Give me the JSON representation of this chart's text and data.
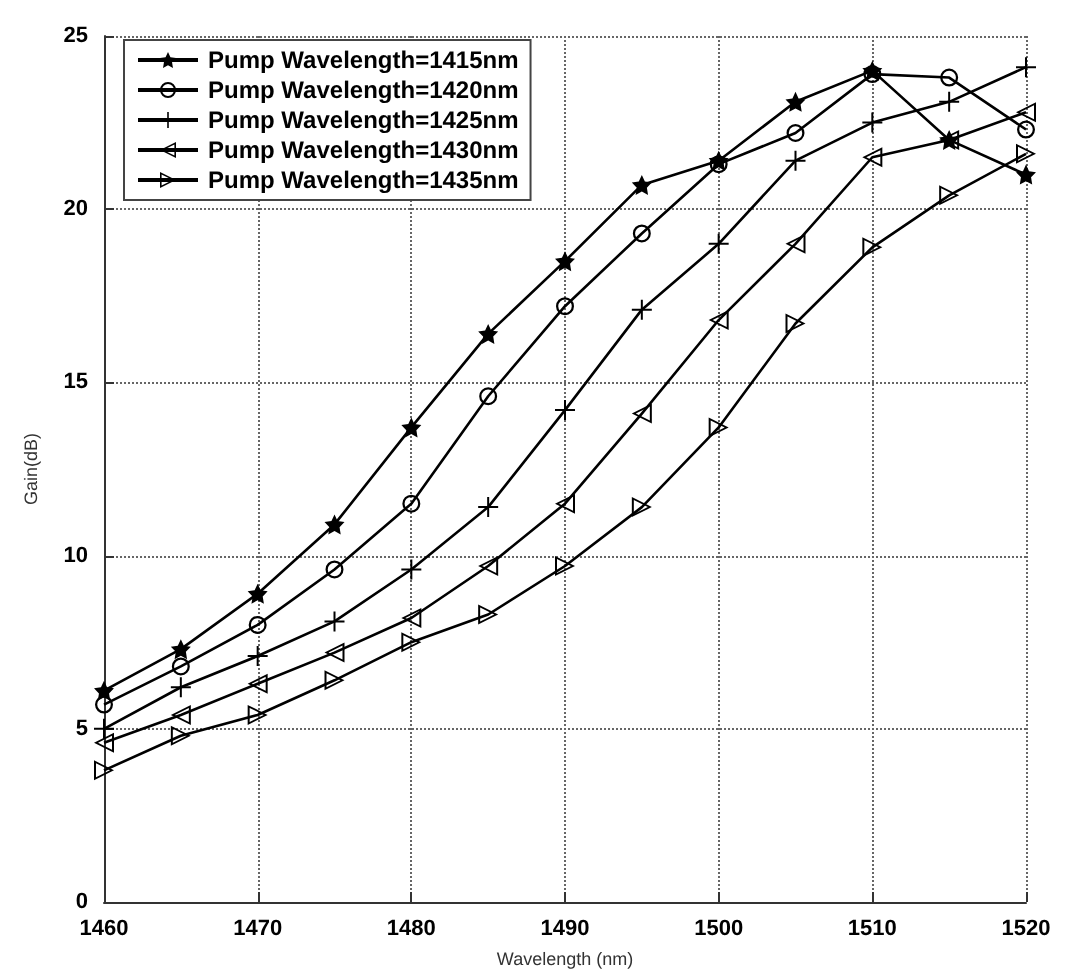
{
  "chart_data": {
    "type": "line",
    "xlabel": "Wavelength (nm)",
    "ylabel": "Gain(dB)",
    "x": [
      1460,
      1465,
      1470,
      1475,
      1480,
      1485,
      1490,
      1495,
      1500,
      1505,
      1510,
      1515,
      1520
    ],
    "xlim": [
      1460,
      1520
    ],
    "xticks": [
      1460,
      1470,
      1480,
      1490,
      1500,
      1510,
      1520
    ],
    "ylim": [
      0,
      25
    ],
    "yticks": [
      0,
      5,
      10,
      15,
      20,
      25
    ],
    "grid": true,
    "legend": "top left",
    "line_style": "solid",
    "series": [
      {
        "name": "Pump Wavelength=1415nm",
        "color": "#000000",
        "marker": "star",
        "values": [
          6.1,
          7.3,
          8.9,
          10.9,
          13.7,
          16.4,
          18.5,
          20.7,
          21.4,
          23.1,
          24.0,
          22.0,
          21.0
        ]
      },
      {
        "name": "Pump Wavelength=1420nm",
        "color": "#000000",
        "marker": "circle",
        "values": [
          5.7,
          6.8,
          8.0,
          9.6,
          11.5,
          14.6,
          17.2,
          19.3,
          21.3,
          22.2,
          23.9,
          23.8,
          22.3
        ]
      },
      {
        "name": "Pump Wavelength=1425nm",
        "color": "#000000",
        "marker": "cross",
        "values": [
          5.0,
          6.2,
          7.1,
          8.1,
          9.6,
          11.4,
          14.2,
          17.1,
          19.0,
          21.4,
          22.5,
          23.1,
          24.1
        ]
      },
      {
        "name": "Pump Wavelength=1430nm",
        "color": "#000000",
        "marker": "triangle-left",
        "values": [
          4.6,
          5.4,
          6.3,
          7.2,
          8.2,
          9.7,
          11.5,
          14.1,
          16.8,
          19.0,
          21.5,
          22.0,
          22.8
        ]
      },
      {
        "name": "Pump Wavelength=1435nm",
        "color": "#000000",
        "marker": "triangle-right",
        "values": [
          3.8,
          4.8,
          5.4,
          6.4,
          7.5,
          8.3,
          9.7,
          11.4,
          13.7,
          16.7,
          18.9,
          20.4,
          21.6
        ]
      }
    ]
  }
}
